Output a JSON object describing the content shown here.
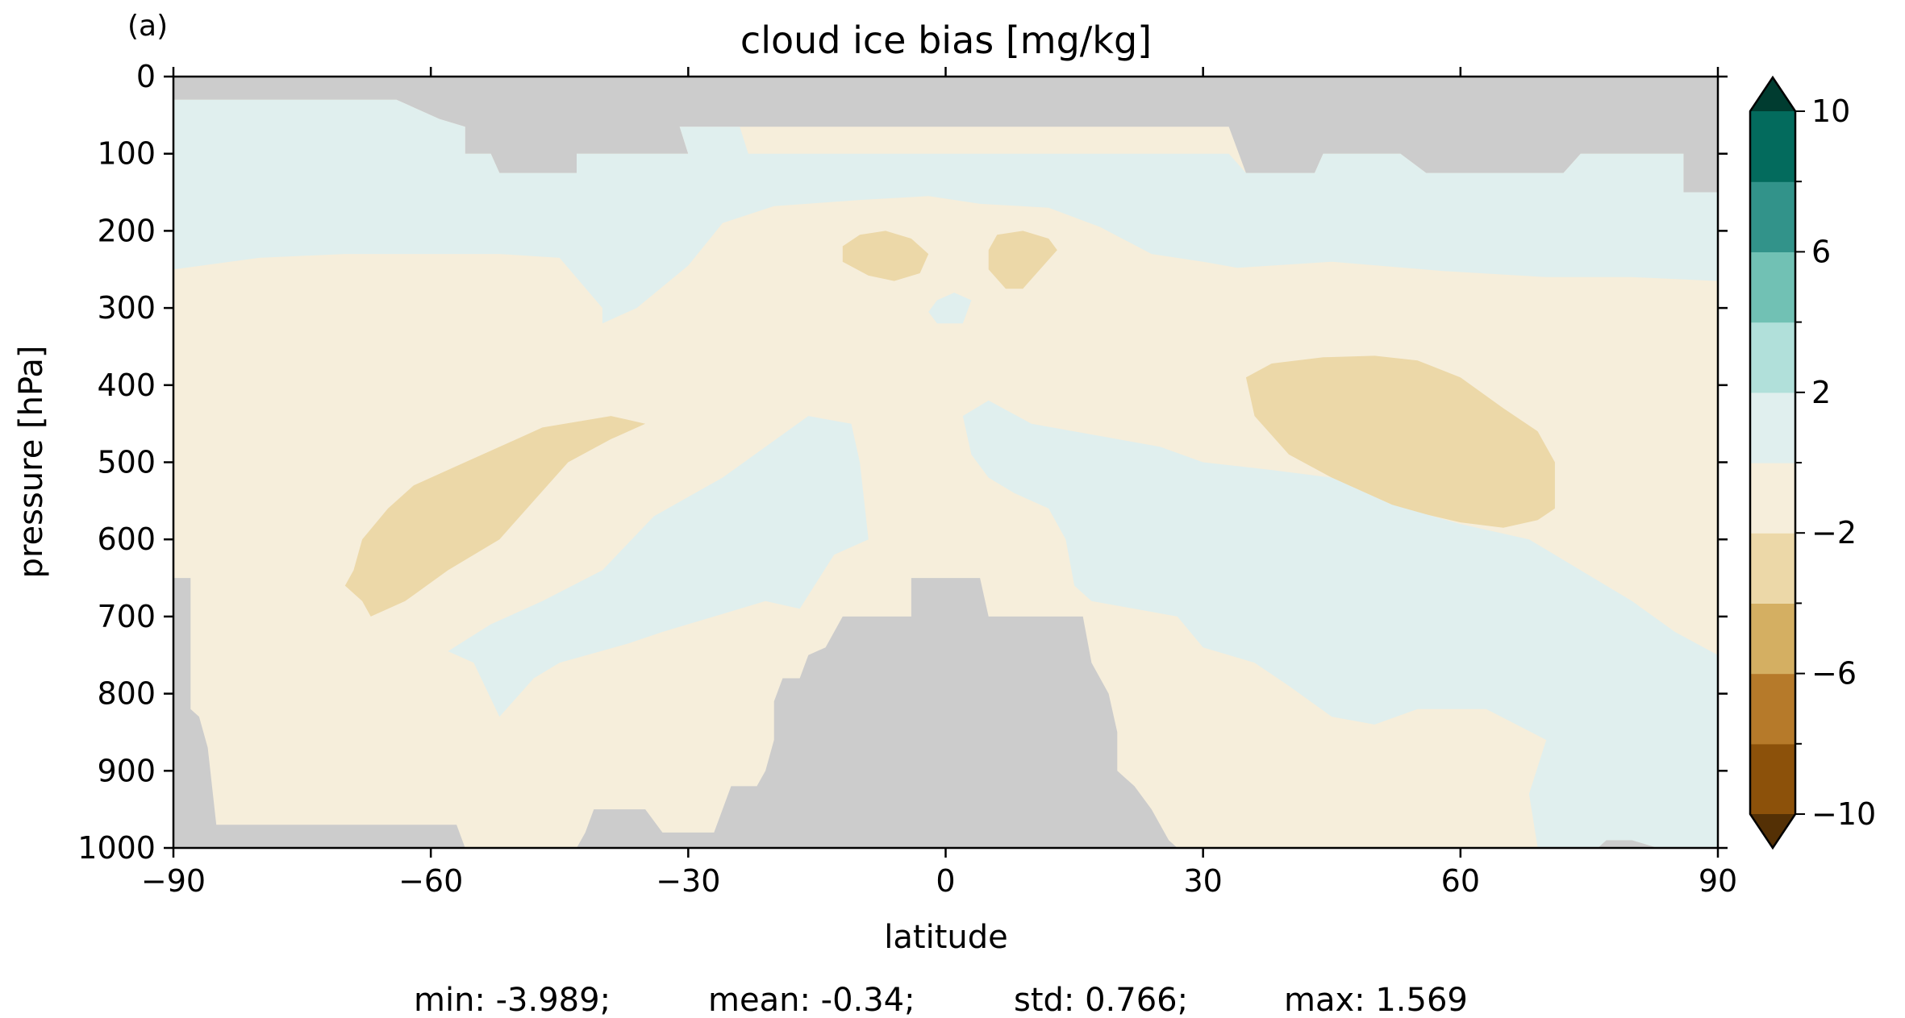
{
  "panel_label": "(a)",
  "chart_data": {
    "type": "heatmap",
    "title": "cloud ice bias [mg/kg]",
    "xlabel": "latitude",
    "ylabel": "pressure [hPa]",
    "xlim": [
      -90,
      90
    ],
    "ylim": [
      1000,
      0
    ],
    "x_ticks": [
      -90,
      -60,
      -30,
      0,
      30,
      60,
      90
    ],
    "x_tick_labels": [
      "−90",
      "−60",
      "−30",
      "0",
      "30",
      "60",
      "90"
    ],
    "y_ticks": [
      0,
      100,
      200,
      300,
      400,
      500,
      600,
      700,
      800,
      900,
      1000
    ],
    "y_tick_labels": [
      "0",
      "100",
      "200",
      "300",
      "400",
      "500",
      "600",
      "700",
      "800",
      "900",
      "1000"
    ],
    "grid": false,
    "colorbar": {
      "orientation": "vertical",
      "extend": "both",
      "levels": [
        -10,
        -8,
        -6,
        -4,
        -2,
        0,
        2,
        4,
        6,
        8,
        10
      ],
      "tick_values": [
        -10,
        -6,
        -2,
        2,
        6,
        10
      ],
      "tick_labels": [
        "−10",
        "−6",
        "−2",
        "2",
        "6",
        "10"
      ],
      "colors": [
        "#543005",
        "#8c510a",
        "#b67a2a",
        "#d4af62",
        "#ecd8a8",
        "#f6eedb",
        "#e0efee",
        "#b1e0da",
        "#71c1b4",
        "#32938a",
        "#036b5d",
        "#003c30"
      ]
    },
    "missing_color": "#cccccc",
    "regions": [
      {
        "name": "missing-top",
        "value": null,
        "polygon": [
          [
            -90,
            0
          ],
          [
            90,
            0
          ],
          [
            90,
            150
          ],
          [
            86,
            150
          ],
          [
            86,
            100
          ],
          [
            74,
            100
          ],
          [
            72,
            125
          ],
          [
            56,
            125
          ],
          [
            53,
            100
          ],
          [
            44,
            100
          ],
          [
            43,
            125
          ],
          [
            35,
            125
          ],
          [
            33,
            65
          ],
          [
            -31,
            65
          ],
          [
            -30,
            100
          ],
          [
            -43,
            100
          ],
          [
            -43,
            125
          ],
          [
            -52,
            125
          ],
          [
            -53,
            100
          ],
          [
            -56,
            100
          ],
          [
            -56,
            65
          ],
          [
            -59,
            55
          ],
          [
            -64,
            30
          ],
          [
            -90,
            30
          ]
        ]
      },
      {
        "name": "missing-sfc-left",
        "value": null,
        "polygon": [
          [
            -90,
            650
          ],
          [
            -88,
            650
          ],
          [
            -88,
            820
          ],
          [
            -87,
            830
          ],
          [
            -86,
            870
          ],
          [
            -85,
            970
          ],
          [
            -57,
            970
          ],
          [
            -56,
            1000
          ],
          [
            -90,
            1000
          ]
        ]
      },
      {
        "name": "missing-sfc-mid",
        "value": null,
        "polygon": [
          [
            -43,
            1000
          ],
          [
            -42,
            980
          ],
          [
            -41,
            950
          ],
          [
            -35,
            950
          ],
          [
            -33,
            980
          ],
          [
            -27,
            980
          ],
          [
            -26,
            950
          ],
          [
            -25,
            920
          ],
          [
            -22,
            920
          ],
          [
            -21,
            900
          ],
          [
            -20,
            860
          ],
          [
            -20,
            810
          ],
          [
            -19,
            780
          ],
          [
            -17,
            780
          ],
          [
            -16,
            750
          ],
          [
            -14,
            740
          ],
          [
            -12,
            700
          ],
          [
            -4,
            700
          ],
          [
            -4,
            650
          ],
          [
            4,
            650
          ],
          [
            5,
            700
          ],
          [
            16,
            700
          ],
          [
            17,
            760
          ],
          [
            19,
            800
          ],
          [
            20,
            850
          ],
          [
            20,
            900
          ],
          [
            22,
            920
          ],
          [
            24,
            950
          ],
          [
            26,
            990
          ],
          [
            27,
            1000
          ]
        ]
      },
      {
        "name": "missing-sfc-right",
        "value": null,
        "polygon": [
          [
            90,
            1000
          ],
          [
            83,
            1000
          ],
          [
            80,
            990
          ],
          [
            77,
            990
          ],
          [
            76,
            1000
          ]
        ]
      },
      {
        "name": "neg-left",
        "value": -3,
        "polygon": [
          [
            -70,
            660
          ],
          [
            -69,
            640
          ],
          [
            -68,
            600
          ],
          [
            -65,
            560
          ],
          [
            -62,
            530
          ],
          [
            -57,
            505
          ],
          [
            -52,
            480
          ],
          [
            -47,
            455
          ],
          [
            -39,
            440
          ],
          [
            -37,
            445
          ],
          [
            -35,
            450
          ],
          [
            -39,
            470
          ],
          [
            -44,
            500
          ],
          [
            -48,
            550
          ],
          [
            -52,
            600
          ],
          [
            -58,
            640
          ],
          [
            -63,
            680
          ],
          [
            -67,
            700
          ],
          [
            -68,
            680
          ]
        ]
      },
      {
        "name": "neg-right",
        "value": -3,
        "polygon": [
          [
            35,
            390
          ],
          [
            38,
            372
          ],
          [
            44,
            364
          ],
          [
            50,
            362
          ],
          [
            55,
            368
          ],
          [
            60,
            390
          ],
          [
            65,
            430
          ],
          [
            69,
            460
          ],
          [
            71,
            500
          ],
          [
            71,
            560
          ],
          [
            69,
            575
          ],
          [
            65,
            585
          ],
          [
            60,
            578
          ],
          [
            53,
            560
          ],
          [
            45,
            520
          ],
          [
            40,
            490
          ],
          [
            36,
            440
          ]
        ]
      },
      {
        "name": "neg-upper-1",
        "value": -3,
        "polygon": [
          [
            -12,
            220
          ],
          [
            -10,
            205
          ],
          [
            -7,
            200
          ],
          [
            -4,
            210
          ],
          [
            -2,
            230
          ],
          [
            -3,
            255
          ],
          [
            -6,
            265
          ],
          [
            -9,
            258
          ],
          [
            -12,
            240
          ]
        ]
      },
      {
        "name": "neg-upper-2",
        "value": -3,
        "polygon": [
          [
            5,
            225
          ],
          [
            6,
            205
          ],
          [
            9,
            200
          ],
          [
            12,
            210
          ],
          [
            13,
            225
          ],
          [
            11,
            250
          ],
          [
            9,
            275
          ],
          [
            7,
            275
          ],
          [
            5,
            250
          ]
        ]
      },
      {
        "name": "pos-stratosphere",
        "value": 1,
        "polygon": [
          [
            -90,
            30
          ],
          [
            -64,
            30
          ],
          [
            -59,
            55
          ],
          [
            -56,
            65
          ],
          [
            -56,
            100
          ],
          [
            -53,
            100
          ],
          [
            -52,
            125
          ],
          [
            -43,
            125
          ],
          [
            -43,
            100
          ],
          [
            -30,
            100
          ],
          [
            -31,
            65
          ],
          [
            -29,
            65
          ],
          [
            -24,
            65
          ],
          [
            -23,
            100
          ],
          [
            33,
            100
          ],
          [
            35,
            125
          ],
          [
            43,
            125
          ],
          [
            44,
            100
          ],
          [
            53,
            100
          ],
          [
            56,
            125
          ],
          [
            72,
            125
          ],
          [
            74,
            100
          ],
          [
            86,
            100
          ],
          [
            86,
            150
          ],
          [
            90,
            150
          ],
          [
            90,
            265
          ],
          [
            80,
            260
          ],
          [
            70,
            260
          ],
          [
            58,
            252
          ],
          [
            45,
            240
          ],
          [
            34,
            248
          ],
          [
            30,
            240
          ],
          [
            24,
            230
          ],
          [
            18,
            195
          ],
          [
            12,
            170
          ],
          [
            4,
            165
          ],
          [
            -2,
            155
          ],
          [
            -10,
            160
          ],
          [
            -20,
            168
          ],
          [
            -26,
            190
          ],
          [
            -30,
            245
          ],
          [
            -36,
            300
          ],
          [
            -40,
            320
          ],
          [
            -40,
            300
          ],
          [
            -45,
            235
          ],
          [
            -52,
            230
          ],
          [
            -62,
            230
          ],
          [
            -70,
            230
          ],
          [
            -80,
            235
          ],
          [
            -90,
            250
          ]
        ]
      },
      {
        "name": "pos-mid-left",
        "value": 1,
        "polygon": [
          [
            -58,
            745
          ],
          [
            -53,
            710
          ],
          [
            -47,
            680
          ],
          [
            -40,
            640
          ],
          [
            -34,
            570
          ],
          [
            -26,
            520
          ],
          [
            -16,
            440
          ],
          [
            -11,
            450
          ],
          [
            -10,
            500
          ],
          [
            -9,
            600
          ],
          [
            -13,
            620
          ],
          [
            -17,
            690
          ],
          [
            -21,
            680
          ],
          [
            -27,
            700
          ],
          [
            -33,
            720
          ],
          [
            -37,
            735
          ],
          [
            -45,
            760
          ],
          [
            -48,
            780
          ],
          [
            -52,
            830
          ],
          [
            -55,
            760
          ]
        ]
      },
      {
        "name": "pos-mid-right",
        "value": 1,
        "polygon": [
          [
            2,
            440
          ],
          [
            5,
            420
          ],
          [
            10,
            450
          ],
          [
            15,
            460
          ],
          [
            20,
            470
          ],
          [
            25,
            480
          ],
          [
            30,
            500
          ],
          [
            38,
            510
          ],
          [
            45,
            520
          ],
          [
            52,
            555
          ],
          [
            60,
            580
          ],
          [
            68,
            600
          ],
          [
            74,
            640
          ],
          [
            80,
            680
          ],
          [
            85,
            720
          ],
          [
            90,
            750
          ],
          [
            90,
            1000
          ],
          [
            83,
            1000
          ],
          [
            80,
            990
          ],
          [
            77,
            990
          ],
          [
            76,
            1000
          ],
          [
            69,
            1000
          ],
          [
            68,
            930
          ],
          [
            70,
            860
          ],
          [
            63,
            820
          ],
          [
            55,
            820
          ],
          [
            50,
            840
          ],
          [
            45,
            830
          ],
          [
            40,
            790
          ],
          [
            36,
            760
          ],
          [
            30,
            740
          ],
          [
            27,
            700
          ],
          [
            22,
            690
          ],
          [
            17,
            680
          ],
          [
            15,
            660
          ],
          [
            14,
            600
          ],
          [
            12,
            560
          ],
          [
            8,
            540
          ],
          [
            5,
            520
          ],
          [
            3,
            490
          ]
        ]
      },
      {
        "name": "pos-small",
        "value": 1,
        "polygon": [
          [
            -1,
            290
          ],
          [
            1,
            280
          ],
          [
            3,
            290
          ],
          [
            2,
            320
          ],
          [
            -1,
            320
          ],
          [
            -2,
            305
          ]
        ]
      }
    ]
  },
  "stats": {
    "min": "min: -3.989;",
    "mean": "mean: -0.34;",
    "std": "std: 0.766;",
    "max": "max: 1.569"
  }
}
